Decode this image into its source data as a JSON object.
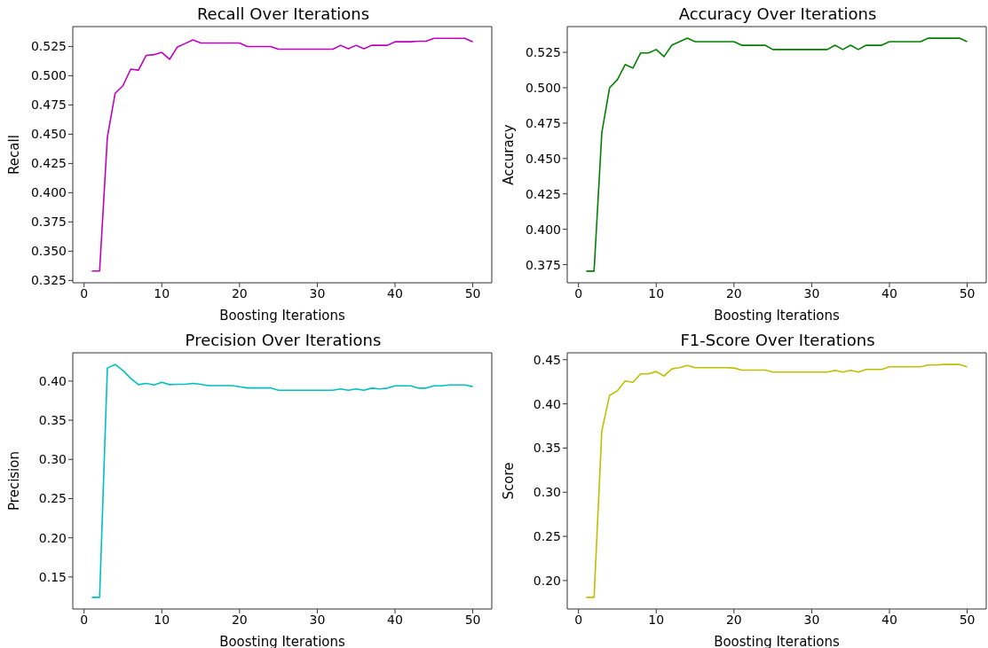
{
  "chart_data": [
    {
      "type": "line",
      "title": "Recall Over Iterations",
      "xlabel": "Boosting Iterations",
      "ylabel": "Recall",
      "xlim": [
        -1.45,
        52.45
      ],
      "xticks": [
        0,
        10,
        20,
        30,
        40,
        50
      ],
      "ylim": [
        0.323,
        0.542
      ],
      "yticks": [
        0.325,
        {
          "value": 0.35,
          "label": "0.350"
        },
        0.375,
        {
          "value": 0.4,
          "label": "0.400"
        },
        0.425,
        {
          "value": 0.45,
          "label": "0.450"
        },
        0.475,
        {
          "value": 0.5,
          "label": "0.500"
        },
        0.525
      ],
      "grid": false,
      "x": [
        1,
        2,
        3,
        4,
        5,
        6,
        7,
        8,
        9,
        10,
        11,
        12,
        13,
        14,
        15,
        16,
        17,
        18,
        19,
        20,
        21,
        22,
        23,
        24,
        25,
        26,
        27,
        28,
        29,
        30,
        31,
        32,
        33,
        34,
        35,
        36,
        37,
        38,
        39,
        40,
        41,
        42,
        43,
        44,
        45,
        46,
        47,
        48,
        49,
        50
      ],
      "series": [
        {
          "color": "#bf00bf",
          "values": [
            0.333,
            0.333,
            0.4475,
            0.485,
            0.4914,
            0.5056,
            0.5048,
            0.5174,
            0.518,
            0.52,
            0.514,
            0.5245,
            0.5275,
            0.5306,
            0.528,
            0.528,
            0.528,
            0.528,
            0.528,
            0.528,
            0.525,
            0.525,
            0.525,
            0.525,
            0.5227,
            0.5227,
            0.5227,
            0.5227,
            0.5227,
            0.5227,
            0.5227,
            0.5227,
            0.526,
            0.523,
            0.526,
            0.523,
            0.526,
            0.526,
            0.526,
            0.529,
            0.529,
            0.529,
            0.5295,
            0.5295,
            0.532,
            0.532,
            0.532,
            0.532,
            0.532,
            0.529
          ]
        }
      ]
    },
    {
      "type": "line",
      "title": "Accuracy Over Iterations",
      "xlabel": "Boosting Iterations",
      "ylabel": "Accuracy",
      "xlim": [
        -1.45,
        52.45
      ],
      "xticks": [
        0,
        10,
        20,
        30,
        40,
        50
      ],
      "ylim": [
        0.3622,
        0.5432
      ],
      "yticks": [
        0.375,
        {
          "value": 0.4,
          "label": "0.400"
        },
        0.425,
        {
          "value": 0.45,
          "label": "0.450"
        },
        0.475,
        {
          "value": 0.5,
          "label": "0.500"
        },
        0.525
      ],
      "grid": false,
      "x": [
        1,
        2,
        3,
        4,
        5,
        6,
        7,
        8,
        9,
        10,
        11,
        12,
        13,
        14,
        15,
        16,
        17,
        18,
        19,
        20,
        21,
        22,
        23,
        24,
        25,
        26,
        27,
        28,
        29,
        30,
        31,
        32,
        33,
        34,
        35,
        36,
        37,
        38,
        39,
        40,
        41,
        42,
        43,
        44,
        45,
        46,
        47,
        48,
        49,
        50
      ],
      "series": [
        {
          "color": "#008000",
          "values": [
            0.3704,
            0.3704,
            0.4683,
            0.5,
            0.5057,
            0.5164,
            0.5139,
            0.5246,
            0.5246,
            0.527,
            0.522,
            0.53,
            0.5326,
            0.535,
            0.5326,
            0.5326,
            0.5326,
            0.5326,
            0.5326,
            0.5326,
            0.53,
            0.53,
            0.53,
            0.53,
            0.527,
            0.527,
            0.527,
            0.527,
            0.527,
            0.527,
            0.527,
            0.527,
            0.53,
            0.527,
            0.53,
            0.527,
            0.53,
            0.53,
            0.53,
            0.5326,
            0.5326,
            0.5326,
            0.5326,
            0.5326,
            0.535,
            0.535,
            0.535,
            0.535,
            0.535,
            0.5326
          ]
        }
      ]
    },
    {
      "type": "line",
      "title": "Precision Over Iterations",
      "xlabel": "Boosting Iterations",
      "ylabel": "Precision",
      "xlim": [
        -1.45,
        52.45
      ],
      "xticks": [
        0,
        10,
        20,
        30,
        40,
        50
      ],
      "ylim": [
        0.1091,
        0.4361
      ],
      "yticks": [
        0.15,
        {
          "value": 0.2,
          "label": "0.20"
        },
        0.25,
        {
          "value": 0.3,
          "label": "0.30"
        },
        0.35,
        {
          "value": 0.4,
          "label": "0.40"
        }
      ],
      "grid": false,
      "x": [
        1,
        2,
        3,
        4,
        5,
        6,
        7,
        8,
        9,
        10,
        11,
        12,
        13,
        14,
        15,
        16,
        17,
        18,
        19,
        20,
        21,
        22,
        23,
        24,
        25,
        26,
        27,
        28,
        29,
        30,
        31,
        32,
        33,
        34,
        35,
        36,
        37,
        38,
        39,
        40,
        41,
        42,
        43,
        44,
        45,
        46,
        47,
        48,
        49,
        50
      ],
      "series": [
        {
          "color": "#00bfbf",
          "values": [
            0.124,
            0.124,
            0.4167,
            0.4212,
            0.4136,
            0.4034,
            0.3955,
            0.397,
            0.395,
            0.3985,
            0.3955,
            0.396,
            0.396,
            0.397,
            0.396,
            0.3943,
            0.3943,
            0.3943,
            0.3943,
            0.3928,
            0.3913,
            0.3913,
            0.3913,
            0.3913,
            0.3883,
            0.3883,
            0.3883,
            0.3883,
            0.3883,
            0.3883,
            0.3883,
            0.3883,
            0.39,
            0.3883,
            0.39,
            0.3883,
            0.391,
            0.39,
            0.391,
            0.394,
            0.394,
            0.394,
            0.391,
            0.391,
            0.394,
            0.394,
            0.395,
            0.395,
            0.395,
            0.393
          ]
        }
      ]
    },
    {
      "type": "line",
      "title": "F1-Score Over Iterations",
      "xlabel": "Boosting Iterations",
      "ylabel": "Score",
      "xlim": [
        -1.45,
        52.45
      ],
      "xticks": [
        0,
        10,
        20,
        30,
        40,
        50
      ],
      "ylim": [
        0.1678,
        0.4578
      ],
      "yticks": [
        {
          "value": 0.2,
          "label": "0.20"
        },
        0.25,
        {
          "value": 0.3,
          "label": "0.30"
        },
        0.35,
        {
          "value": 0.4,
          "label": "0.40"
        },
        0.45
      ],
      "grid": false,
      "x": [
        1,
        2,
        3,
        4,
        5,
        6,
        7,
        8,
        9,
        10,
        11,
        12,
        13,
        14,
        15,
        16,
        17,
        18,
        19,
        20,
        21,
        22,
        23,
        24,
        25,
        26,
        27,
        28,
        29,
        30,
        31,
        32,
        33,
        34,
        35,
        36,
        37,
        38,
        39,
        40,
        41,
        42,
        43,
        44,
        45,
        46,
        47,
        48,
        49,
        50
      ],
      "series": [
        {
          "color": "#bfbf00",
          "values": [
            0.181,
            0.181,
            0.3695,
            0.4097,
            0.4148,
            0.426,
            0.4245,
            0.434,
            0.434,
            0.4366,
            0.4315,
            0.4396,
            0.441,
            0.4436,
            0.441,
            0.441,
            0.441,
            0.441,
            0.441,
            0.4406,
            0.4383,
            0.4383,
            0.4383,
            0.4383,
            0.436,
            0.436,
            0.436,
            0.436,
            0.436,
            0.436,
            0.436,
            0.436,
            0.438,
            0.436,
            0.438,
            0.436,
            0.439,
            0.439,
            0.439,
            0.442,
            0.442,
            0.442,
            0.442,
            0.442,
            0.444,
            0.444,
            0.4446,
            0.4446,
            0.4446,
            0.442
          ]
        }
      ]
    }
  ]
}
